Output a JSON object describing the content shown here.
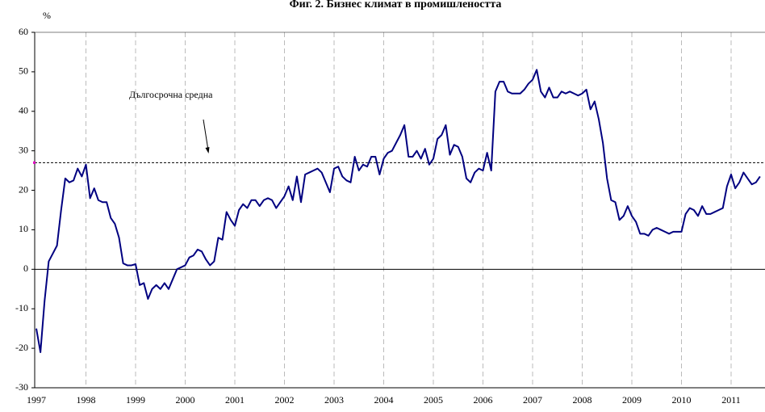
{
  "chart_data": {
    "type": "line",
    "title": "Фиг. 2. Бизнес климат в промишлеността",
    "y_label": "%",
    "categories": [
      "1997",
      null,
      null,
      null,
      null,
      null,
      null,
      null,
      null,
      null,
      null,
      null,
      "1998",
      null,
      null,
      null,
      null,
      null,
      null,
      null,
      null,
      null,
      null,
      null,
      "1999",
      null,
      null,
      null,
      null,
      null,
      null,
      null,
      null,
      null,
      null,
      null,
      "2000",
      null,
      null,
      null,
      null,
      null,
      null,
      null,
      null,
      null,
      null,
      null,
      "2001",
      null,
      null,
      null,
      null,
      null,
      null,
      null,
      null,
      null,
      null,
      null,
      "2002",
      null,
      null,
      null,
      null,
      null,
      null,
      null,
      null,
      null,
      null,
      null,
      "2003",
      null,
      null,
      null,
      null,
      null,
      null,
      null,
      null,
      null,
      null,
      null,
      "2004",
      null,
      null,
      null,
      null,
      null,
      null,
      null,
      null,
      null,
      null,
      null,
      "2005",
      null,
      null,
      null,
      null,
      null,
      null,
      null,
      null,
      null,
      null,
      null,
      "2006",
      null,
      null,
      null,
      null,
      null,
      null,
      null,
      null,
      null,
      null,
      null,
      "2007",
      null,
      null,
      null,
      null,
      null,
      null,
      null,
      null,
      null,
      null,
      null,
      "2008",
      null,
      null,
      null,
      null,
      null,
      null,
      null,
      null,
      null,
      null,
      null,
      "2009",
      null,
      null,
      null,
      null,
      null,
      null,
      null,
      null,
      null,
      null,
      null,
      "2010",
      null,
      null,
      null,
      null,
      null,
      null,
      null,
      null,
      null,
      null,
      null,
      "2011",
      null,
      null,
      null,
      null,
      null,
      null,
      null
    ],
    "series": [
      {
        "color": "#000080",
        "values": [
          -15,
          -21,
          -8,
          2,
          4,
          6,
          15,
          23,
          22,
          22.5,
          25.5,
          23.5,
          26.5,
          18,
          20.5,
          17.5,
          17,
          17,
          13,
          11.5,
          8,
          1.5,
          1,
          1,
          1.3,
          -4,
          -3.5,
          -7.5,
          -5,
          -4,
          -5,
          -3.5,
          -5,
          -2.5,
          0,
          0.5,
          1,
          3,
          3.5,
          5,
          4.5,
          2.5,
          1,
          2,
          8,
          7.5,
          14.5,
          12.5,
          11,
          15,
          16.5,
          15.5,
          17.5,
          17.5,
          16,
          17.5,
          18,
          17.5,
          15.5,
          17,
          18.5,
          21,
          17.5,
          23.5,
          17,
          24,
          24.5,
          25,
          25.5,
          24.5,
          22,
          19.5,
          25.5,
          26,
          23.5,
          22.5,
          22,
          28.5,
          25,
          26.5,
          26,
          28.5,
          28.5,
          24,
          28,
          29.5,
          30,
          32,
          34,
          36.5,
          28.5,
          28.5,
          30,
          28,
          30.5,
          26.5,
          28,
          33,
          34,
          36.5,
          29,
          31.5,
          31,
          28.5,
          23,
          22,
          24.5,
          25.5,
          25,
          29.5,
          25,
          45,
          47.5,
          47.5,
          45,
          44.5,
          44.5,
          44.5,
          45.5,
          47,
          48,
          50.5,
          45,
          43.5,
          46,
          43.5,
          43.5,
          45,
          44.5,
          45,
          44.5,
          44,
          44.5,
          45.5,
          40.5,
          42.5,
          38,
          32,
          23,
          17.5,
          17,
          12.5,
          13.5,
          16,
          13.5,
          12,
          9,
          9,
          8.5,
          10,
          10.5,
          10,
          9.5,
          9,
          9.5,
          9.5,
          9.5,
          14,
          15.5,
          15,
          13.5,
          16,
          14,
          14,
          14.5,
          15,
          15.5,
          21,
          24,
          20.5,
          22,
          24.5,
          23,
          21.5,
          22,
          23.5
        ]
      }
    ],
    "reference_line": {
      "value": 27,
      "label": "Дългосрочна средна",
      "color": "#000000"
    },
    "ylim": [
      -30,
      60
    ],
    "yticks": [
      -30,
      -20,
      -10,
      0,
      10,
      20,
      30,
      40,
      50,
      60
    ],
    "grid_x": true
  }
}
